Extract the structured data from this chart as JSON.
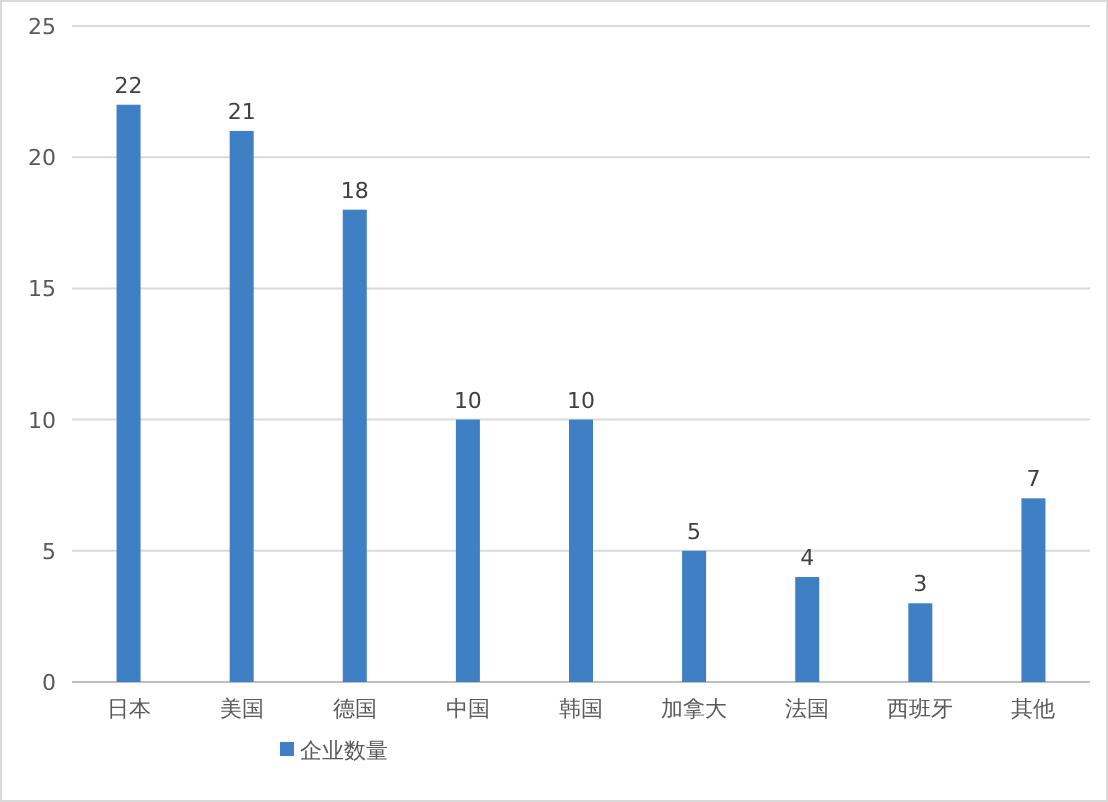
{
  "chart_data": {
    "type": "bar",
    "categories": [
      "日本",
      "美国",
      "德国",
      "中国",
      "韩国",
      "加拿大",
      "法国",
      "西班牙",
      "其他"
    ],
    "series": [
      {
        "name": "企业数量",
        "color": "#3f7fc4",
        "values": [
          22,
          21,
          18,
          10,
          10,
          5,
          4,
          3,
          7
        ]
      }
    ],
    "ylim": [
      0,
      25
    ],
    "yticks": [
      0,
      5,
      10,
      15,
      20,
      25
    ],
    "grid": "y",
    "legend": "bottom",
    "data_labels": true
  }
}
